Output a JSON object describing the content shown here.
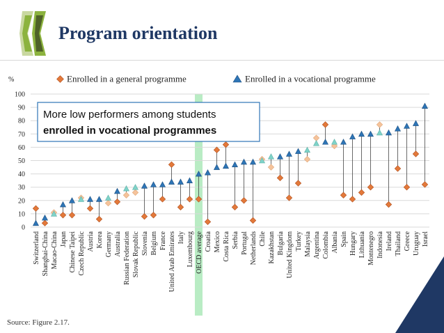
{
  "header": {
    "title": "Program orientation"
  },
  "footer": {
    "source": "Source: Figure 2.17."
  },
  "colors": {
    "title": "#1f3864",
    "general": "#e3793a",
    "general_light": "#f5c39b",
    "vocational": "#2e75b6",
    "vocational_light": "#7fd3c9",
    "oecd_band": "#b9ecc4",
    "callout_border": "#2e75b6",
    "corner": "#1f3864"
  },
  "chart_data": {
    "type": "scatter",
    "ylabel": "%",
    "ylim": [
      0,
      100
    ],
    "yticks": [
      0,
      10,
      20,
      30,
      40,
      50,
      60,
      70,
      80,
      90,
      100
    ],
    "grid": true,
    "legend_placement": "top",
    "annotation": {
      "line1": "More low performers among students",
      "line2": "enrolled in vocational programmes"
    },
    "highlight_category": "OECD average",
    "categories": [
      "Switzerland",
      "Shanghai-China",
      "Macao-China",
      "Japan",
      "Chinese Taipei",
      "Czech Republic",
      "Austria",
      "Korea",
      "Germany",
      "Australia",
      "Russian Federation",
      "Slovak Republic",
      "Slovenia",
      "Belgium",
      "France",
      "United Arab Emirates",
      "Italy",
      "Luxembourg",
      "OECD average",
      "Croatia",
      "Mexico",
      "Costa Rica",
      "Serbia",
      "Portugal",
      "Netherlands",
      "Chile",
      "Kazakhstan",
      "Bulgaria",
      "United Kingdom",
      "Turkey",
      "Malaysia",
      "Argentina",
      "Colombia",
      "Albania",
      "Spain",
      "Hungary",
      "Lithuania",
      "Montenegro",
      "Indonesia",
      "Ireland",
      "Thailand",
      "Greece",
      "Uruguay",
      "Israel"
    ],
    "series": [
      {
        "name": "Enrolled in a general programme",
        "marker": "diamond",
        "values": [
          14,
          3,
          11,
          9,
          9,
          22,
          14,
          6,
          18,
          19,
          24,
          26,
          8,
          9,
          21,
          47,
          15,
          21,
          21,
          4,
          58,
          62,
          15,
          20,
          5,
          51,
          45,
          37,
          22,
          33,
          51,
          67,
          77,
          61,
          24,
          21,
          26,
          30,
          77,
          17,
          44,
          30,
          55,
          32
        ],
        "light": [
          false,
          false,
          true,
          false,
          false,
          true,
          false,
          false,
          true,
          false,
          true,
          true,
          false,
          false,
          false,
          false,
          false,
          false,
          false,
          false,
          false,
          false,
          false,
          false,
          false,
          true,
          true,
          false,
          false,
          false,
          true,
          true,
          false,
          true,
          false,
          false,
          false,
          false,
          true,
          false,
          false,
          false,
          false,
          false
        ]
      },
      {
        "name": "Enrolled in a vocational programme",
        "marker": "triangle",
        "values": [
          3,
          7,
          10,
          17,
          20,
          21,
          21,
          21,
          22,
          27,
          29,
          30,
          31,
          32,
          32,
          34,
          34,
          35,
          40,
          41,
          45,
          46,
          47,
          49,
          49,
          50,
          53,
          53,
          55,
          57,
          58,
          63,
          64,
          64,
          64,
          68,
          70,
          70,
          71,
          71,
          74,
          76,
          78,
          91
        ],
        "light": [
          false,
          false,
          true,
          false,
          false,
          true,
          false,
          false,
          true,
          false,
          true,
          true,
          false,
          false,
          false,
          false,
          false,
          false,
          false,
          false,
          false,
          false,
          false,
          false,
          false,
          true,
          true,
          false,
          false,
          false,
          true,
          true,
          false,
          true,
          false,
          false,
          false,
          false,
          true,
          false,
          false,
          false,
          false,
          false
        ]
      }
    ]
  }
}
